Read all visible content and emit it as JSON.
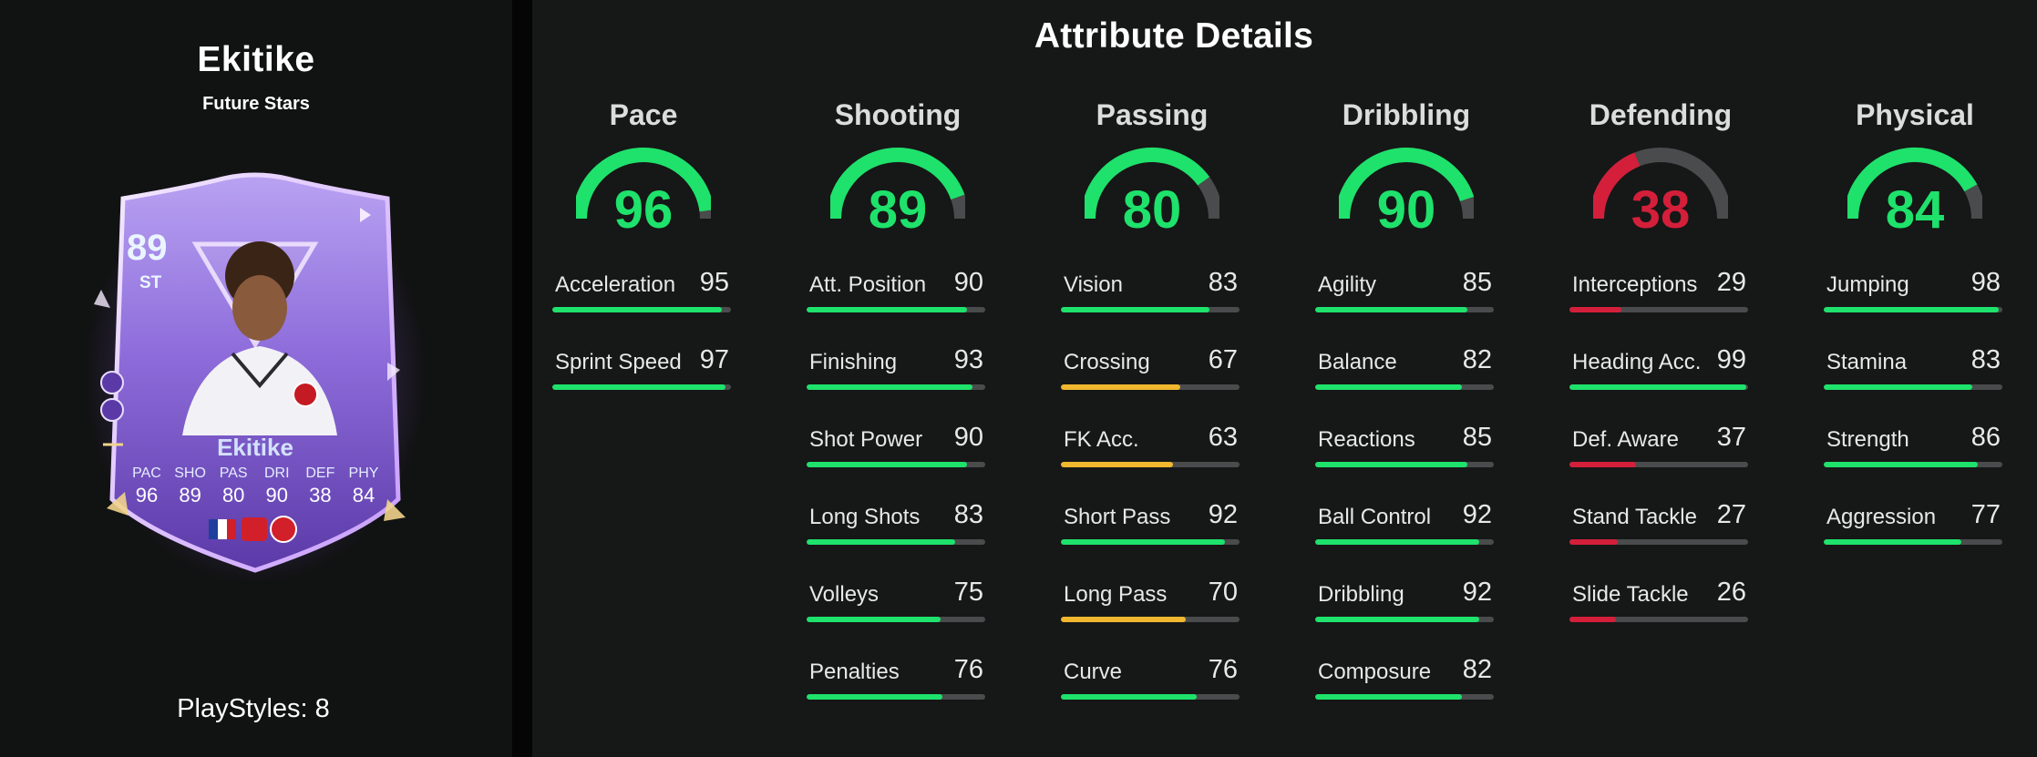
{
  "player": {
    "name": "Ekitike",
    "version": "Future Stars",
    "playstyles_label": "PlayStyles: 8"
  },
  "card": {
    "rating": "89",
    "position": "ST",
    "name": "Ekitike",
    "stats": [
      {
        "label": "PAC",
        "value": "96"
      },
      {
        "label": "SHO",
        "value": "89"
      },
      {
        "label": "PAS",
        "value": "80"
      },
      {
        "label": "DRI",
        "value": "90"
      },
      {
        "label": "DEF",
        "value": "38"
      },
      {
        "label": "PHY",
        "value": "84"
      }
    ]
  },
  "attributes": {
    "title": "Attribute Details",
    "colors": {
      "high": "#1ee26b",
      "mid": "#f0b72f",
      "low": "#d41f3a",
      "track": "#4a4b4c"
    },
    "categories": [
      {
        "name": "Pace",
        "value": "96",
        "level": "high",
        "items": [
          {
            "label": "Acceleration",
            "value": "95",
            "level": "high"
          },
          {
            "label": "Sprint Speed",
            "value": "97",
            "level": "high"
          }
        ]
      },
      {
        "name": "Shooting",
        "value": "89",
        "level": "high",
        "items": [
          {
            "label": "Att. Position",
            "value": "90",
            "level": "high"
          },
          {
            "label": "Finishing",
            "value": "93",
            "level": "high"
          },
          {
            "label": "Shot Power",
            "value": "90",
            "level": "high"
          },
          {
            "label": "Long Shots",
            "value": "83",
            "level": "high"
          },
          {
            "label": "Volleys",
            "value": "75",
            "level": "high"
          },
          {
            "label": "Penalties",
            "value": "76",
            "level": "high"
          }
        ]
      },
      {
        "name": "Passing",
        "value": "80",
        "level": "high",
        "items": [
          {
            "label": "Vision",
            "value": "83",
            "level": "high"
          },
          {
            "label": "Crossing",
            "value": "67",
            "level": "mid"
          },
          {
            "label": "FK Acc.",
            "value": "63",
            "level": "mid"
          },
          {
            "label": "Short Pass",
            "value": "92",
            "level": "high"
          },
          {
            "label": "Long Pass",
            "value": "70",
            "level": "mid"
          },
          {
            "label": "Curve",
            "value": "76",
            "level": "high"
          }
        ]
      },
      {
        "name": "Dribbling",
        "value": "90",
        "level": "high",
        "items": [
          {
            "label": "Agility",
            "value": "85",
            "level": "high"
          },
          {
            "label": "Balance",
            "value": "82",
            "level": "high"
          },
          {
            "label": "Reactions",
            "value": "85",
            "level": "high"
          },
          {
            "label": "Ball Control",
            "value": "92",
            "level": "high"
          },
          {
            "label": "Dribbling",
            "value": "92",
            "level": "high"
          },
          {
            "label": "Composure",
            "value": "82",
            "level": "high"
          }
        ]
      },
      {
        "name": "Defending",
        "value": "38",
        "level": "low",
        "items": [
          {
            "label": "Interceptions",
            "value": "29",
            "level": "low"
          },
          {
            "label": "Heading Acc.",
            "value": "99",
            "level": "high"
          },
          {
            "label": "Def. Aware",
            "value": "37",
            "level": "low"
          },
          {
            "label": "Stand Tackle",
            "value": "27",
            "level": "low"
          },
          {
            "label": "Slide Tackle",
            "value": "26",
            "level": "low"
          }
        ]
      },
      {
        "name": "Physical",
        "value": "84",
        "level": "high",
        "items": [
          {
            "label": "Jumping",
            "value": "98",
            "level": "high"
          },
          {
            "label": "Stamina",
            "value": "83",
            "level": "high"
          },
          {
            "label": "Strength",
            "value": "86",
            "level": "high"
          },
          {
            "label": "Aggression",
            "value": "77",
            "level": "high"
          }
        ]
      }
    ]
  }
}
